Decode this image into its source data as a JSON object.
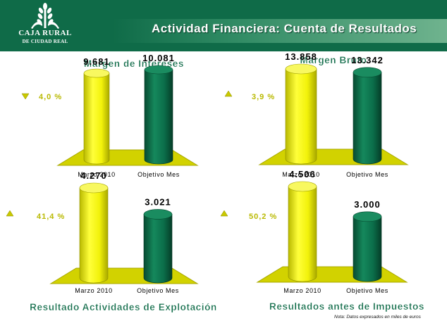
{
  "header": {
    "title": "Actividad Financiera: Cuenta de Resultados",
    "logo_line1": "CAJA RURAL",
    "logo_line2": "DE CIUDAD REAL"
  },
  "colors": {
    "header_green": "#0f6b48",
    "bar_yellow": "#f2f20a",
    "bar_green": "#0b6e4a",
    "floor_yellow": "#d2d200",
    "title_green": "#0f6b48",
    "pct_text": "#b9b900"
  },
  "chart_data": [
    {
      "type": "bar",
      "title": "Margen de Intereses",
      "categories": [
        "Marzo 2010",
        "Objetivo Mes"
      ],
      "values": [
        9681,
        10081
      ],
      "value_labels": [
        "9.681",
        "10.081"
      ],
      "change": {
        "direction": "down",
        "icon": "triangle-down-icon",
        "text": "4,0 %"
      }
    },
    {
      "type": "bar",
      "title": "Margen Bruto",
      "categories": [
        "Marzo 2010",
        "Objetivo Mes"
      ],
      "values": [
        13858,
        13342
      ],
      "value_labels": [
        "13.858",
        "13.342"
      ],
      "change": {
        "direction": "up",
        "icon": "triangle-up-icon",
        "text": "3,9 %"
      }
    },
    {
      "type": "bar",
      "title": "Resultado Actividades de Explotación",
      "categories": [
        "Marzo 2010",
        "Objetivo Mes"
      ],
      "values": [
        4270,
        3021
      ],
      "value_labels": [
        "4.270",
        "3.021"
      ],
      "change": {
        "direction": "up",
        "icon": "triangle-up-icon",
        "text": "41,4 %"
      }
    },
    {
      "type": "bar",
      "title": "Resultados antes de Impuestos",
      "categories": [
        "Marzo 2010",
        "Objetivo Mes"
      ],
      "values": [
        4506,
        3000
      ],
      "value_labels": [
        "4.506",
        "3.000"
      ],
      "change": {
        "direction": "up",
        "icon": "triangle-up-icon",
        "text": "50,2 %"
      }
    }
  ],
  "footer": {
    "note": "Nota: Datos expresados en miles de euros"
  }
}
